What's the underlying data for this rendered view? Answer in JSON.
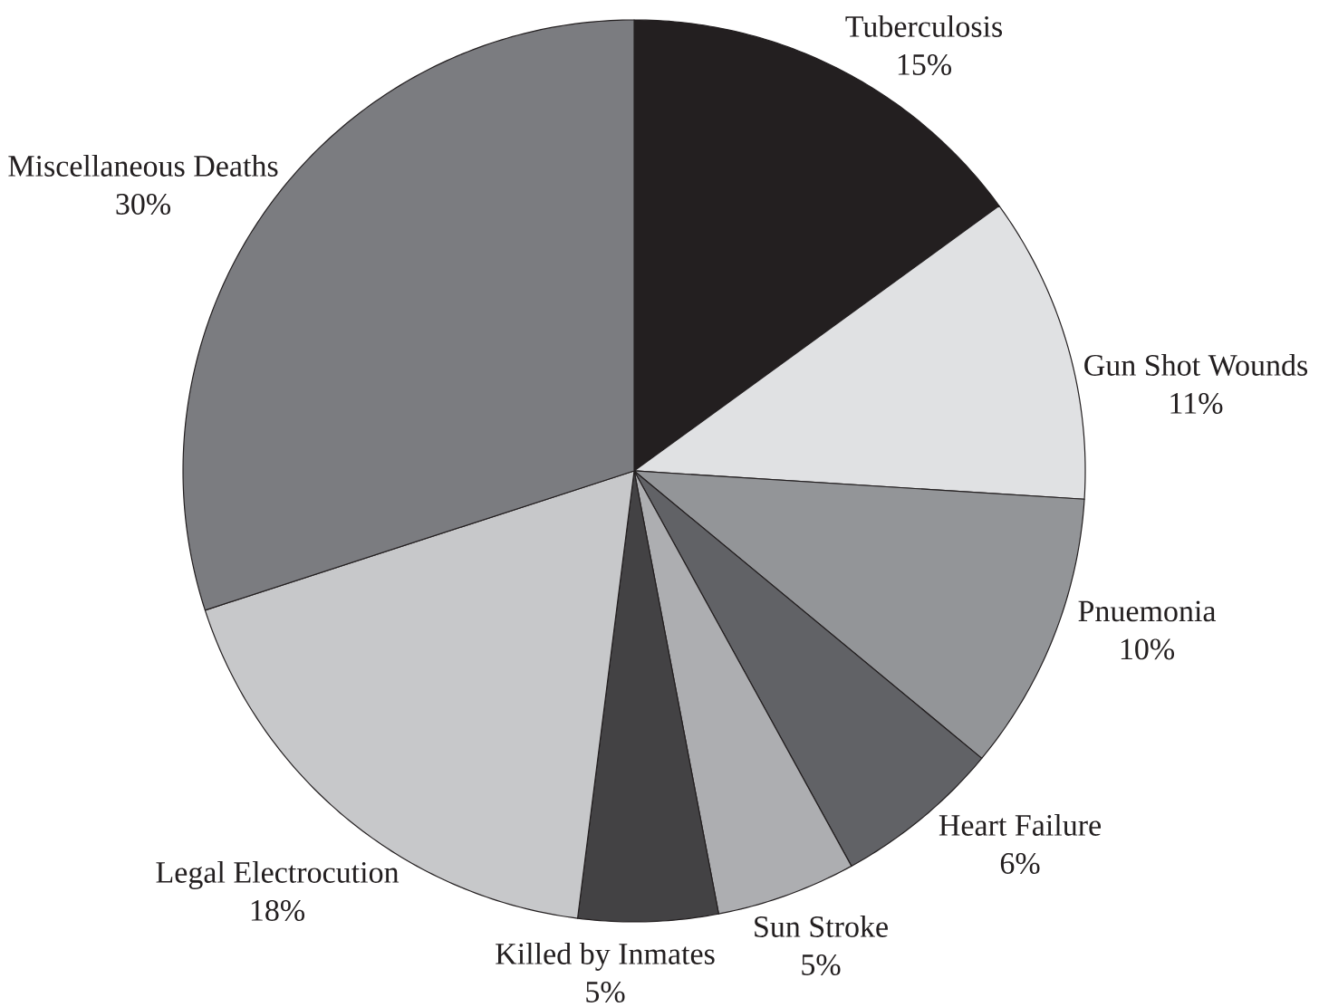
{
  "chart_data": {
    "type": "pie",
    "categories": [
      "Tuberculosis",
      "Gun Shot Wounds",
      "Pnuemonia",
      "Heart Failure",
      "Sun Stroke",
      "Killed by Inmates",
      "Legal Electrocution",
      "Miscellaneous Deaths"
    ],
    "values": [
      15,
      11,
      10,
      6,
      5,
      5,
      18,
      30
    ],
    "value_labels": [
      "15%",
      "11%",
      "10%",
      "6%",
      "5%",
      "5%",
      "18%",
      "30%"
    ],
    "colors": [
      "#231f20",
      "#e0e1e3",
      "#939598",
      "#616266",
      "#adaeb1",
      "#434244",
      "#c7c8ca",
      "#7b7c80"
    ]
  }
}
